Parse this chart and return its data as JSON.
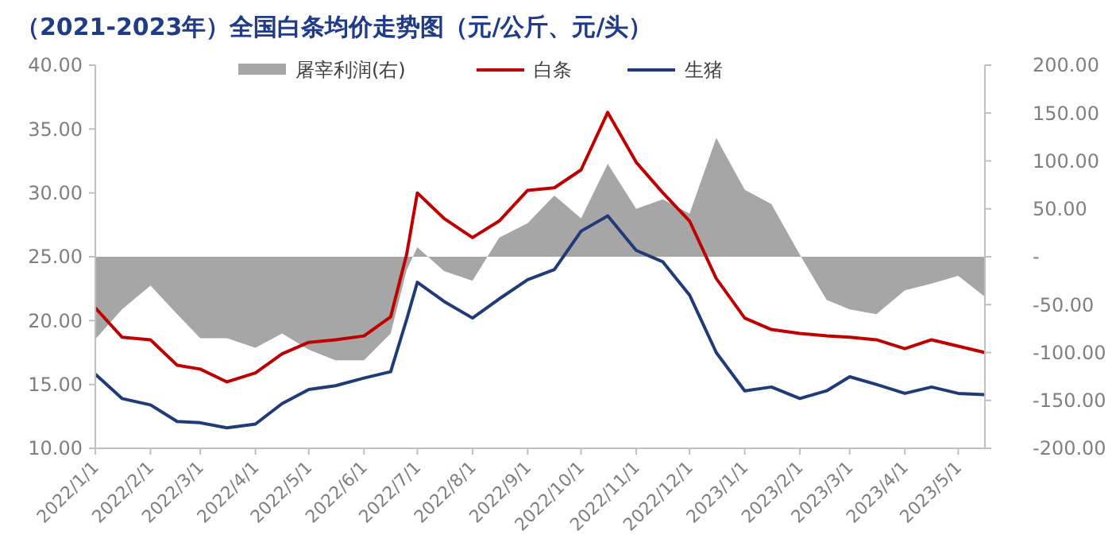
{
  "chart_data": {
    "type": "line",
    "title": "（2021-2023年）全国白条均价走势图（元/公斤、元/头）",
    "legend": "top",
    "grid": false,
    "x": [
      "2022-01-01",
      "2022-01-16",
      "2022-02-01",
      "2022-02-16",
      "2022-03-01",
      "2022-03-16",
      "2022-04-01",
      "2022-04-16",
      "2022-05-01",
      "2022-05-16",
      "2022-06-01",
      "2022-06-16",
      "2022-06-25",
      "2022-07-01",
      "2022-07-16",
      "2022-08-01",
      "2022-08-16",
      "2022-09-01",
      "2022-09-16",
      "2022-10-01",
      "2022-10-16",
      "2022-11-01",
      "2022-11-16",
      "2022-12-01",
      "2022-12-16",
      "2023-01-01",
      "2023-01-16",
      "2023-02-01",
      "2023-02-16",
      "2023-03-01",
      "2023-03-16",
      "2023-04-01",
      "2023-04-16",
      "2023-05-01",
      "2023-05-16"
    ],
    "series": [
      {
        "name": "屠宰利润(右)",
        "type": "area",
        "axis": "y2",
        "color": "#a6a6a6",
        "values": [
          -86,
          -55,
          -30,
          -60,
          -85,
          -85,
          -95,
          -80,
          -97,
          -108,
          -108,
          -80,
          -14,
          10,
          -15,
          -25,
          20,
          35,
          64,
          40,
          97,
          50,
          60,
          45,
          124,
          70,
          55,
          2,
          -45,
          -55,
          -60,
          -35,
          -28,
          -20,
          -42
        ]
      },
      {
        "name": "白条",
        "color": "#c00000",
        "values": [
          21.0,
          18.7,
          18.5,
          16.5,
          16.2,
          15.2,
          15.9,
          17.4,
          18.3,
          18.5,
          18.8,
          20.3,
          25.2,
          30.0,
          28.0,
          26.5,
          27.8,
          30.2,
          30.4,
          31.8,
          36.3,
          32.4,
          30.0,
          27.8,
          23.3,
          20.2,
          19.3,
          19.0,
          18.8,
          18.7,
          18.5,
          17.8,
          18.5,
          18.0,
          17.5
        ]
      },
      {
        "name": "生猪",
        "color": "#1f3b78",
        "values": [
          15.8,
          13.9,
          13.4,
          12.1,
          12.0,
          11.6,
          11.9,
          13.5,
          14.6,
          14.9,
          15.5,
          16.0,
          20.1,
          23.0,
          21.5,
          20.2,
          21.7,
          23.2,
          24.0,
          27.0,
          28.2,
          25.5,
          24.6,
          22.0,
          17.5,
          14.5,
          14.8,
          13.9,
          14.5,
          15.6,
          15.0,
          14.3,
          14.8,
          14.3,
          14.2
        ]
      }
    ],
    "xlim": [
      "2022-01-01",
      "2023-05-16"
    ],
    "xticks": [
      {
        "value": "2022-01-01",
        "label": "2022/1/1"
      },
      {
        "value": "2022-02-01",
        "label": "2022/2/1"
      },
      {
        "value": "2022-03-01",
        "label": "2022/3/1"
      },
      {
        "value": "2022-04-01",
        "label": "2022/4/1"
      },
      {
        "value": "2022-05-01",
        "label": "2022/5/1"
      },
      {
        "value": "2022-06-01",
        "label": "2022/6/1"
      },
      {
        "value": "2022-07-01",
        "label": "2022/7/1"
      },
      {
        "value": "2022-08-01",
        "label": "2022/8/1"
      },
      {
        "value": "2022-09-01",
        "label": "2022/9/1"
      },
      {
        "value": "2022-10-01",
        "label": "2022/10/1"
      },
      {
        "value": "2022-11-01",
        "label": "2022/11/1"
      },
      {
        "value": "2022-12-01",
        "label": "2022/12/1"
      },
      {
        "value": "2023-01-01",
        "label": "2023/1/1"
      },
      {
        "value": "2023-02-01",
        "label": "2023/2/1"
      },
      {
        "value": "2023-03-01",
        "label": "2023/3/1"
      },
      {
        "value": "2023-04-01",
        "label": "2023/4/1"
      },
      {
        "value": "2023-05-01",
        "label": "2023/5/1"
      }
    ],
    "ylim": [
      10,
      40
    ],
    "yticks": [
      {
        "value": 10,
        "label": "10.00"
      },
      {
        "value": 15,
        "label": "15.00"
      },
      {
        "value": 20,
        "label": "20.00"
      },
      {
        "value": 25,
        "label": "25.00"
      },
      {
        "value": 30,
        "label": "30.00"
      },
      {
        "value": 35,
        "label": "35.00"
      },
      {
        "value": 40,
        "label": "40.00"
      }
    ],
    "y2lim": [
      -200,
      200
    ],
    "y2ticks": [
      {
        "value": -200,
        "label": "-200.00"
      },
      {
        "value": -150,
        "label": "-150.00"
      },
      {
        "value": -100,
        "label": "-100.00"
      },
      {
        "value": -50,
        "label": "-50.00"
      },
      {
        "value": 0,
        "label": "-"
      },
      {
        "value": 50,
        "label": "50.00"
      },
      {
        "value": 100,
        "label": "100.00"
      },
      {
        "value": 150,
        "label": "150.00"
      },
      {
        "value": 200,
        "label": "200.00"
      }
    ]
  }
}
